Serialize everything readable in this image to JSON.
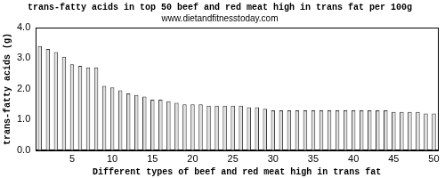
{
  "chart_data": {
    "type": "bar",
    "title": "trans-fatty acids in top 50 beef and red meat high in trans fat per 100g",
    "subtitle": "www.dietandfitnesstoday.com",
    "x_label": "Different types of beef and red meat high in trans fat",
    "y_label": "trans-fatty acids (g)",
    "categories": [
      null,
      null,
      null,
      null,
      5,
      null,
      null,
      null,
      null,
      10,
      null,
      null,
      null,
      null,
      15,
      null,
      null,
      null,
      null,
      20,
      null,
      null,
      null,
      null,
      25,
      null,
      null,
      null,
      null,
      30,
      null,
      null,
      null,
      null,
      35,
      null,
      null,
      null,
      null,
      40,
      null,
      null,
      null,
      null,
      45,
      null,
      null,
      null,
      null,
      50
    ],
    "values": [
      3.4,
      3.3,
      3.2,
      3.05,
      2.8,
      2.75,
      2.7,
      2.7,
      2.1,
      2.05,
      1.95,
      1.85,
      1.8,
      1.75,
      1.65,
      1.65,
      1.6,
      1.55,
      1.5,
      1.5,
      1.5,
      1.45,
      1.45,
      1.45,
      1.45,
      1.45,
      1.4,
      1.4,
      1.35,
      1.3,
      1.3,
      1.3,
      1.3,
      1.3,
      1.3,
      1.3,
      1.3,
      1.3,
      1.3,
      1.3,
      1.3,
      1.3,
      1.3,
      1.3,
      1.25,
      1.25,
      1.25,
      1.25,
      1.2,
      1.2
    ],
    "color": "#e0e0e0",
    "ylim": [
      0,
      4
    ],
    "yticks": [
      {
        "value": 0,
        "label": "0.0"
      },
      {
        "value": 1,
        "label": "1.0"
      },
      {
        "value": 2,
        "label": "2.0"
      },
      {
        "value": 3,
        "label": "3.0"
      },
      {
        "value": 4,
        "label": "4.0"
      }
    ],
    "grid": false
  }
}
